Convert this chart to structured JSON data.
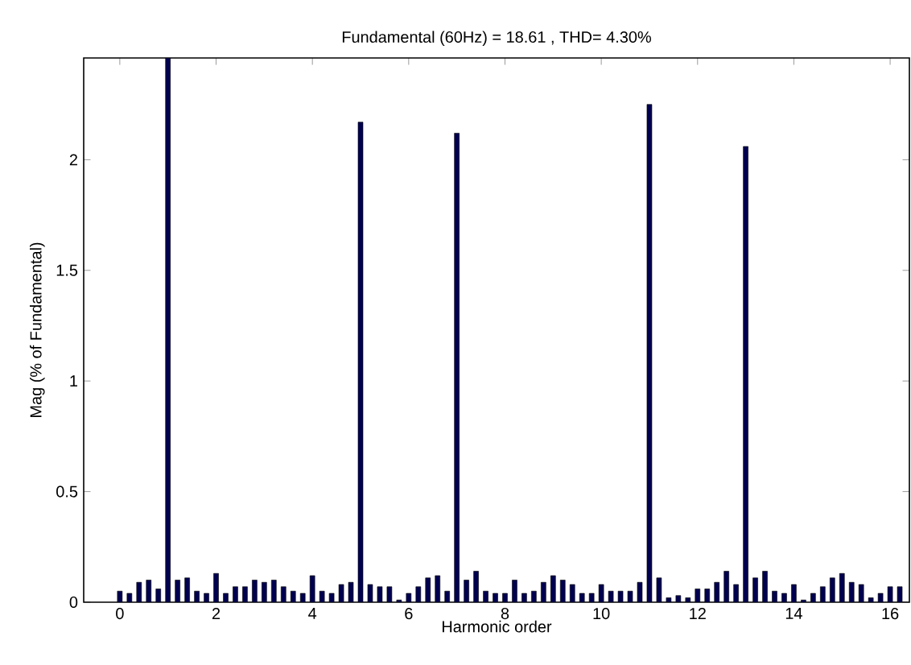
{
  "chart_data": {
    "type": "bar",
    "title": "Fundamental (60Hz) = 18.61 , THD= 4.30%",
    "xlabel": "Harmonic order",
    "ylabel": "Mag (% of Fundamental)",
    "x": [
      0,
      0.2,
      0.4,
      0.6,
      0.8,
      1,
      1.2,
      1.4,
      1.6,
      1.8,
      2,
      2.2,
      2.4,
      2.6,
      2.8,
      3,
      3.2,
      3.4,
      3.6,
      3.8,
      4,
      4.2,
      4.4,
      4.6,
      4.8,
      5,
      5.2,
      5.4,
      5.6,
      5.8,
      6,
      6.2,
      6.4,
      6.6,
      6.8,
      7,
      7.2,
      7.4,
      7.6,
      7.8,
      8,
      8.2,
      8.4,
      8.6,
      8.8,
      9,
      9.2,
      9.4,
      9.6,
      9.8,
      10,
      10.2,
      10.4,
      10.6,
      10.8,
      11,
      11.2,
      11.4,
      11.6,
      11.8,
      12,
      12.2,
      12.4,
      12.6,
      12.8,
      13,
      13.2,
      13.4,
      13.6,
      13.8,
      14,
      14.2,
      14.4,
      14.6,
      14.8,
      15,
      15.2,
      15.4,
      15.6,
      15.8,
      16,
      16.2
    ],
    "values": [
      0.05,
      0.04,
      0.09,
      0.1,
      0.06,
      2.46,
      0.1,
      0.11,
      0.05,
      0.04,
      0.13,
      0.04,
      0.07,
      0.07,
      0.1,
      0.09,
      0.1,
      0.07,
      0.05,
      0.04,
      0.12,
      0.05,
      0.04,
      0.08,
      0.09,
      2.17,
      0.08,
      0.07,
      0.07,
      0.01,
      0.04,
      0.07,
      0.11,
      0.12,
      0.05,
      2.12,
      0.1,
      0.14,
      0.05,
      0.04,
      0.04,
      0.1,
      0.04,
      0.05,
      0.09,
      0.12,
      0.1,
      0.08,
      0.04,
      0.04,
      0.08,
      0.05,
      0.05,
      0.05,
      0.09,
      2.25,
      0.11,
      0.02,
      0.03,
      0.02,
      0.06,
      0.06,
      0.09,
      0.14,
      0.08,
      2.06,
      0.11,
      0.14,
      0.05,
      0.04,
      0.08,
      0.01,
      0.04,
      0.07,
      0.11,
      0.13,
      0.09,
      0.08,
      0.02,
      0.04,
      0.07,
      0.07
    ],
    "color": "#000050",
    "xlim": [
      -0.75,
      16.4
    ],
    "ylim": [
      0,
      2.46
    ],
    "xticks": [
      0,
      2,
      4,
      6,
      8,
      10,
      12,
      14,
      16
    ],
    "yticks": [
      0,
      0.5,
      1,
      1.5,
      2
    ]
  }
}
